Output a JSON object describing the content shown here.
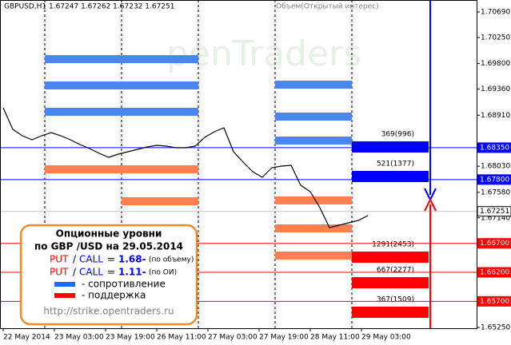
{
  "chart_data": {
    "type": "line",
    "header": "GBPUSD,H1  1.67247 1.67262 1.67232 1.67251",
    "indicator_label": "Объем(Открытый интерес)",
    "watermark": "penTraders",
    "color": "#000000",
    "x": [
      0,
      3,
      6,
      9,
      12,
      15,
      18,
      21,
      24,
      27,
      30,
      33,
      36,
      39,
      42,
      45,
      48,
      51,
      54,
      57,
      60,
      63,
      66,
      69,
      72,
      75,
      78,
      81,
      84,
      87,
      90,
      93,
      96,
      99,
      102,
      105,
      108,
      111,
      114
    ],
    "values": [
      1.69037,
      1.68666,
      1.68555,
      1.68486,
      1.68555,
      1.6861,
      1.68555,
      1.68486,
      1.68404,
      1.68335,
      1.68252,
      1.68183,
      1.68239,
      1.6828,
      1.68321,
      1.68363,
      1.6839,
      1.68376,
      1.68349,
      1.68349,
      1.68376,
      1.68528,
      1.68624,
      1.68693,
      1.6828,
      1.68101,
      1.67936,
      1.67839,
      1.68004,
      1.68032,
      1.68046,
      1.67701,
      1.67591,
      1.67316,
      1.66972,
      1.67013,
      1.67054,
      1.67095,
      1.67178
    ],
    "xlim": [
      -1,
      148
    ],
    "xticks": [
      {
        "value": 0,
        "label": "22 May 2014"
      },
      {
        "value": 16,
        "label": "23 May 03:00"
      },
      {
        "value": 32,
        "label": "23 May 19:00"
      },
      {
        "value": 48,
        "label": "26 May 11:00"
      },
      {
        "value": 64,
        "label": "27 May 03:00"
      },
      {
        "value": 80,
        "label": "27 May 19:00"
      },
      {
        "value": 96,
        "label": "28 May 11:00"
      },
      {
        "value": 112,
        "label": "29 May 03:00"
      }
    ],
    "separators": [
      13,
      37,
      61,
      85,
      109
    ],
    "ylim": [
      1.65236,
      1.70897
    ],
    "yticks": [
      {
        "value": 1.7069,
        "label": "1.70690"
      },
      {
        "value": 1.7025,
        "label": "1.70250"
      },
      {
        "value": 1.698,
        "label": "1.69800"
      },
      {
        "value": 1.6936,
        "label": "1.69360"
      },
      {
        "value": 1.6891,
        "label": "1.68910"
      },
      {
        "value": 1.6803,
        "label": "1.68030"
      },
      {
        "value": 1.6758,
        "label": "1.67580"
      },
      {
        "value": 1.6714,
        "label": "1.67140"
      },
      {
        "value": 1.6525,
        "label": "1.65250"
      }
    ],
    "price_lines": [
      {
        "value": 1.6835,
        "label": "1.68350",
        "color": "#0000ff"
      },
      {
        "value": 1.678,
        "label": "1.67800",
        "color": "#0000ff"
      },
      {
        "value": 1.67251,
        "label": "1.67251",
        "color": "#c0c0c0"
      },
      {
        "value": 1.667,
        "label": "1.66700",
        "color": "#ff0000"
      },
      {
        "value": 1.662,
        "label": "1.66200",
        "color": "#ff0000"
      },
      {
        "value": 1.657,
        "label": "1.65700",
        "color": "#ff0000"
      }
    ],
    "levels": [
      {
        "from": 13,
        "to": 37,
        "price": 1.69877,
        "color": "#4a86f0"
      },
      {
        "from": 13,
        "to": 37,
        "price": 1.69423,
        "color": "#4a86f0"
      },
      {
        "from": 13,
        "to": 37,
        "price": 1.68969,
        "color": "#4a86f0"
      },
      {
        "from": 13,
        "to": 37,
        "price": 1.67977,
        "color": "#ff7f50"
      },
      {
        "from": 37,
        "to": 61,
        "price": 1.69877,
        "color": "#4a86f0"
      },
      {
        "from": 37,
        "to": 61,
        "price": 1.69423,
        "color": "#4a86f0"
      },
      {
        "from": 37,
        "to": 61,
        "price": 1.68969,
        "color": "#4a86f0"
      },
      {
        "from": 37,
        "to": 61,
        "price": 1.67977,
        "color": "#ff7f50"
      },
      {
        "from": 37,
        "to": 61,
        "price": 1.67426,
        "color": "#ff7f50"
      },
      {
        "from": 85,
        "to": 109,
        "price": 1.69437,
        "color": "#4a86f0"
      },
      {
        "from": 85,
        "to": 109,
        "price": 1.68886,
        "color": "#4a86f0"
      },
      {
        "from": 85,
        "to": 109,
        "price": 1.68473,
        "color": "#4a86f0"
      },
      {
        "from": 85,
        "to": 109,
        "price": 1.6744,
        "color": "#ff7f50"
      },
      {
        "from": 85,
        "to": 109,
        "price": 1.66958,
        "color": "#ff7f50"
      },
      {
        "from": 85,
        "to": 109,
        "price": 1.6649,
        "color": "#ff7f50"
      },
      {
        "from": 109,
        "to": 133,
        "price": 1.68363,
        "color": "#0000ff",
        "label": "369(996)"
      },
      {
        "from": 109,
        "to": 133,
        "price": 1.67853,
        "color": "#0000ff",
        "label": "521(1377)"
      },
      {
        "from": 109,
        "to": 133,
        "price": 1.66462,
        "color": "#ff0000",
        "label": "1291(2453)"
      },
      {
        "from": 109,
        "to": 133,
        "price": 1.66021,
        "color": "#ff0000",
        "label": "667(2277)"
      },
      {
        "from": 109,
        "to": 133,
        "price": 1.65512,
        "color": "#ff0000",
        "label": "367(1509)"
      }
    ],
    "legend": {
      "title": "Опционные уровни",
      "subtitle": "по GBP /USD на 29.05.2014",
      "rows": [
        {
          "put": "PUT",
          "slash": "/",
          "call": "CALL",
          "eq": "=",
          "ratio": "1.68-",
          "note": "(по объему)"
        },
        {
          "put": "PUT",
          "slash": "/",
          "call": "CALL",
          "eq": "=",
          "ratio": "1.11-",
          "note": "(по ОИ)"
        }
      ],
      "resistance": {
        "color": "#1e6cff",
        "label": "- сопротивление"
      },
      "support": {
        "color": "#ff0000",
        "label": "- поддержка"
      },
      "url": "http://strike.opentraders.ru"
    }
  }
}
